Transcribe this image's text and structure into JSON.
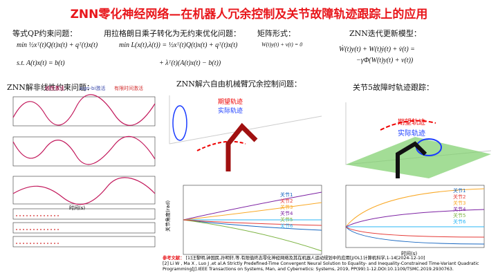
{
  "title": "ZNN零化神经网络—在机器人冗余控制及关节故障轨迹跟踪上的应用",
  "sections": [
    {
      "heading": "等式QP约束问题：",
      "formulas": [
        "min ½xᵀ(t)Q(t)x(t) + qᵀ(t)x(t)",
        "s.t.   A(t)x(t) = b(t)"
      ]
    },
    {
      "heading": "用拉格朗日乘子转化为无约束优化问题：",
      "formulas": [
        "min L(x(t),λ(t)) = ½xᵀ(t)Q(t)x(t) + qᵀ(t)x(t)",
        "+ λᵀ(t)(A(t)x(t) − b(t))"
      ]
    },
    {
      "heading": "矩阵形式：",
      "formulas": [
        "W(t)y(t) + v(t) = 0"
      ]
    },
    {
      "heading": "ZNN迭代更新模型：",
      "formulas": [
        "Ẇ(t)y(t) + W(t)ẏ(t) + v̇(t) =",
        "−γΦ(W(t)y(t) + v(t))"
      ]
    },
    {
      "heading": "ZNN解非线性约束问题："
    },
    {
      "heading": "ZNN解六自由机械臂冗余控制问题："
    },
    {
      "heading": "关节5故障时轨迹跟踪："
    }
  ],
  "left_legend": [
    "线性激活",
    "sign-bi激活",
    "有限时间激活"
  ],
  "trajectory_legend": [
    "期望轨迹",
    "实际轨迹"
  ],
  "joint_legend": [
    "关节1",
    "关节2",
    "关节3",
    "关节4",
    "关节5",
    "关节6"
  ],
  "time_label": "时间(s)",
  "angle_label": "关节角度(rad)",
  "references": {
    "label": "参考文献：",
    "items": [
      "[1]汪黎明,钟国民,孙明轩,等.有限值终态零化神经网络及其在机器人运动规划中的应用[J/OL].计算机科学,1-14[2024-12-10]",
      "[2] Li W , Ma X , Luo J ,et al.A Strictly Predefined-Time Convergent Neural Solution to Equality- and Inequality-Constrained Time-Variant Quadratic Programming[J].IEEE Transactions on Systems, Man, and Cybernetics: Systems, 2019, PP(99):1-12.DOI:10.1109/TSMC.2019.2930763."
    ]
  }
}
